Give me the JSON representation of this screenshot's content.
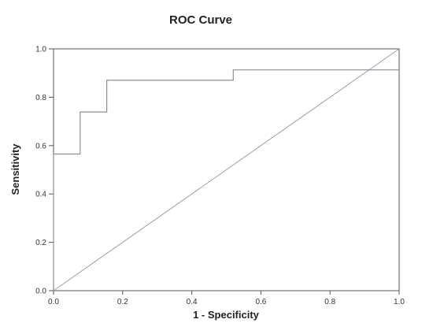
{
  "chart_data": {
    "type": "line",
    "title": "ROC Curve",
    "xlabel": "1 - Specificity",
    "ylabel": "Sensitivity",
    "xlim": [
      0.0,
      1.0
    ],
    "ylim": [
      0.0,
      1.0
    ],
    "x_ticks": [
      "0.0",
      "0.2",
      "0.4",
      "0.6",
      "0.8",
      "1.0"
    ],
    "y_ticks": [
      "0.0",
      "0.2",
      "0.4",
      "0.6",
      "0.8",
      "1.0"
    ],
    "grid": false,
    "legend": "none",
    "series": [
      {
        "x": [
          0.0,
          0.0,
          0.077,
          0.077,
          0.154,
          0.154,
          0.52,
          0.52,
          1.0
        ],
        "y": [
          0.0,
          0.565,
          0.565,
          0.739,
          0.739,
          0.87,
          0.87,
          0.913,
          0.913
        ]
      },
      {
        "x": [
          0.0,
          1.0
        ],
        "y": [
          0.0,
          1.0
        ]
      }
    ],
    "colors": {
      "roc_line": "#8a8f9a",
      "reference_line": "#9a9ea8",
      "frame": "#555555"
    }
  }
}
